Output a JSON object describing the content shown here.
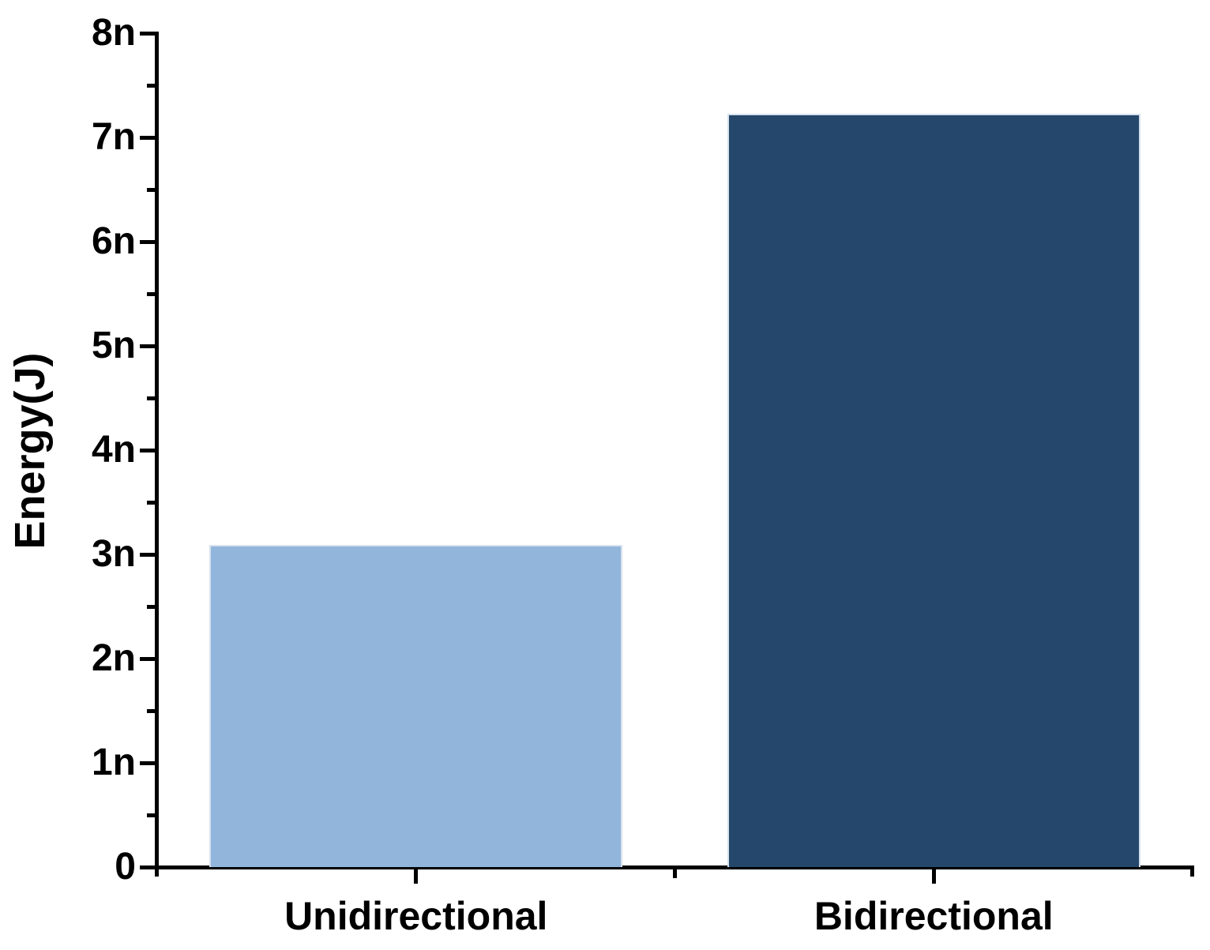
{
  "chart_data": {
    "type": "bar",
    "title": "",
    "xlabel": "",
    "ylabel": "Energy(J)",
    "categories": [
      "Unidirectional",
      "Bidirectional"
    ],
    "series": [
      {
        "name": "Energy",
        "values_nJ": [
          3.09,
          7.23
        ]
      }
    ],
    "unit": "nJ (y tick labels use SI suffix n)",
    "ylim_nJ": [
      0,
      8
    ],
    "y_major_tick_labels": [
      "0",
      "1n",
      "2n",
      "3n",
      "4n",
      "5n",
      "6n",
      "7n",
      "8n"
    ],
    "y_minor_tick_interval_nJ": 0.5,
    "grid": false,
    "legend_position": "none",
    "bar_colors": [
      "#92B5DC",
      "#24476B"
    ],
    "bar_edge_color": "#D7E1ED",
    "axis_color": "#000000",
    "text_color": "#000000",
    "background_color": "#FFFFFF"
  }
}
